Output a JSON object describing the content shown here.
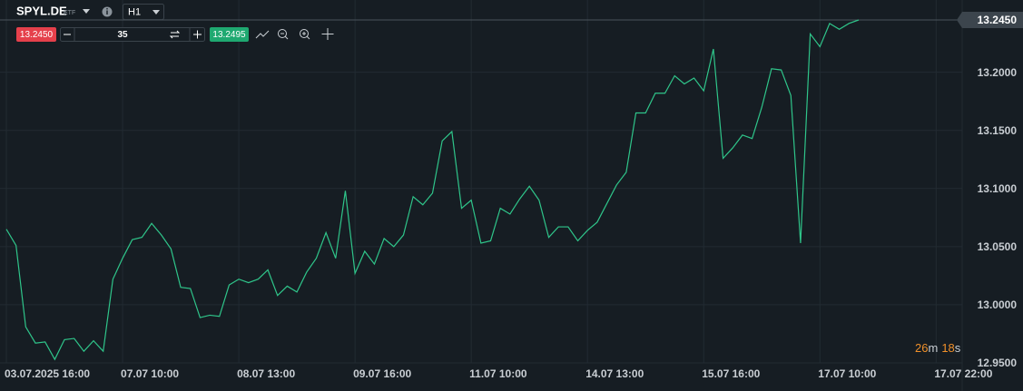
{
  "toolbar": {
    "symbol": "SPYL.DE",
    "symbol_type": "ETF",
    "timeframe": "H1",
    "bid": "13.2450",
    "quantity": "35",
    "ask": "13.2495"
  },
  "chart_data": {
    "type": "line",
    "color": "#2fc58a",
    "categories": [
      "03.07.2025 16:00",
      null,
      null,
      null,
      null,
      null,
      null,
      null,
      null,
      null,
      null,
      null,
      "07.07 10:00",
      null,
      null,
      null,
      null,
      null,
      null,
      null,
      null,
      null,
      null,
      null,
      "08.07 13:00",
      null,
      null,
      null,
      null,
      null,
      null,
      null,
      null,
      null,
      null,
      null,
      "09.07 16:00",
      null,
      null,
      null,
      null,
      null,
      null,
      null,
      null,
      null,
      null,
      null,
      "11.07 10:00",
      null,
      null,
      null,
      null,
      null,
      null,
      null,
      null,
      null,
      null,
      null,
      "14.07 13:00",
      null,
      null,
      null,
      null,
      null,
      null,
      null,
      null,
      null,
      null,
      null,
      "15.07 16:00",
      null,
      null,
      null,
      null,
      null,
      null,
      null,
      null,
      null,
      null,
      null,
      "17.07 10:00",
      null,
      null,
      null,
      null,
      null,
      null,
      null,
      null,
      null,
      null,
      null,
      "17.07 22:00"
    ],
    "values": [
      13.065,
      13.051,
      12.981,
      12.967,
      12.968,
      12.953,
      12.97,
      12.971,
      12.96,
      12.969,
      12.96,
      13.022,
      13.04,
      13.056,
      13.058,
      13.07,
      13.06,
      13.048,
      13.015,
      13.014,
      12.989,
      12.991,
      12.99,
      13.017,
      13.022,
      13.019,
      13.022,
      13.03,
      13.008,
      13.016,
      13.011,
      13.028,
      13.04,
      13.062,
      13.04,
      13.098,
      13.027,
      13.046,
      13.035,
      13.057,
      13.05,
      13.06,
      13.093,
      13.086,
      13.096,
      13.141,
      13.149,
      13.083,
      13.09,
      13.053,
      13.055,
      13.083,
      13.078,
      13.091,
      13.102,
      13.09,
      13.058,
      13.067,
      13.067,
      13.055,
      13.064,
      13.071,
      13.087,
      13.103,
      13.114,
      13.165,
      13.165,
      13.182,
      13.182,
      13.197,
      13.19,
      13.195,
      13.184,
      13.22,
      13.126,
      13.135,
      13.146,
      13.143,
      13.17,
      13.203,
      13.202,
      13.18,
      13.053,
      13.233,
      13.222,
      13.242,
      13.237,
      13.242,
      13.245,
      null,
      null,
      null,
      null,
      null,
      null,
      null,
      null
    ],
    "ylim": [
      12.95,
      13.245
    ],
    "yticks": [
      {
        "value": 12.95,
        "label": "12.9500"
      },
      {
        "value": 13.0,
        "label": "13.0000"
      },
      {
        "value": 13.05,
        "label": "13.0500"
      },
      {
        "value": 13.1,
        "label": "13.1000"
      },
      {
        "value": 13.15,
        "label": "13.1500"
      },
      {
        "value": 13.2,
        "label": "13.2000"
      }
    ],
    "last_price": {
      "value": 13.245,
      "label": "13.2450"
    },
    "grid": true
  },
  "countdown": {
    "minutes": "26",
    "minutes_unit": "m",
    "seconds": "18",
    "seconds_unit": "s"
  }
}
